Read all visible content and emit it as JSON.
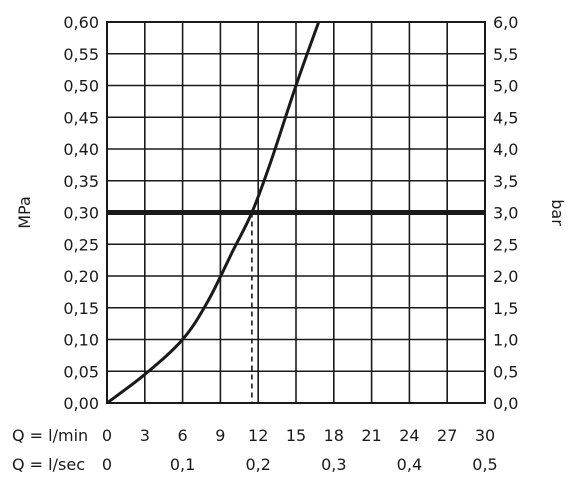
{
  "chart_data": {
    "type": "line",
    "ylabel_left": "MPa",
    "ylabel_right": "bar",
    "x_rows": [
      {
        "label": "Q = l/min",
        "ticks": [
          "0",
          "3",
          "6",
          "9",
          "12",
          "15",
          "18",
          "21",
          "24",
          "27",
          "30"
        ],
        "values": [
          0,
          3,
          6,
          9,
          12,
          15,
          18,
          21,
          24,
          27,
          30
        ]
      },
      {
        "label": "Q = l/sec",
        "ticks": [
          "0",
          "0,1",
          "0,2",
          "0,3",
          "0,4",
          "0,5"
        ],
        "values": [
          0,
          0.1,
          0.2,
          0.3,
          0.4,
          0.5
        ]
      }
    ],
    "xlim": [
      0,
      30
    ],
    "ylim": [
      0,
      0.6
    ],
    "y_ticks_left": [
      "0,00",
      "0,05",
      "0,10",
      "0,15",
      "0,20",
      "0,25",
      "0,30",
      "0,35",
      "0,40",
      "0,45",
      "0,50",
      "0,55",
      "0,60"
    ],
    "y_ticks_right": [
      "0,0",
      "0,5",
      "1,0",
      "1,5",
      "2,0",
      "2,5",
      "3,0",
      "3,5",
      "4,0",
      "4,5",
      "5,0",
      "5,5",
      "6,0"
    ],
    "grid": true,
    "series": [
      {
        "x": [
          0,
          3,
          6,
          8,
          10,
          11.5,
          13,
          15,
          16.8
        ],
        "y": [
          0,
          0.045,
          0.1,
          0.16,
          0.24,
          0.3,
          0.38,
          0.5,
          0.6
        ],
        "color": "#1a1a1a"
      }
    ],
    "reference_line": {
      "y": 0.3,
      "color": "#1a1a1a"
    },
    "marker_line": {
      "x": 11.5,
      "y": 0.3
    }
  }
}
